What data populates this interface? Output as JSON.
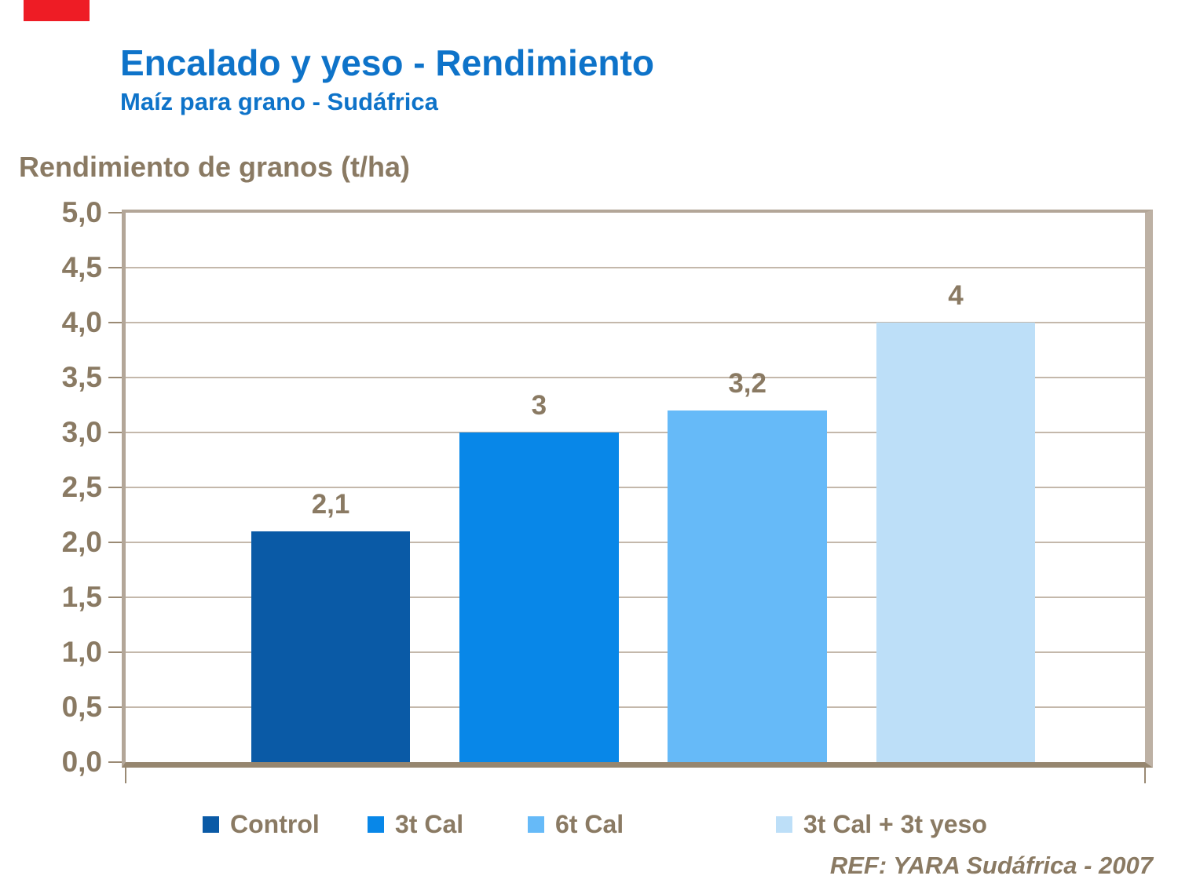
{
  "accent": {
    "bar_color": "#EE1C25"
  },
  "chart_data": {
    "type": "bar",
    "title": "Encalado y yeso - Rendimiento",
    "subtitle": "Maíz para grano - Sudáfrica",
    "ylabel": "Rendimiento de granos (t/ha)",
    "categories": [
      "Control",
      "3t Cal",
      "6t Cal",
      "3t Cal + 3t yeso"
    ],
    "values": [
      2.1,
      3,
      3.2,
      4
    ],
    "value_labels": [
      "2,1",
      "3",
      "3,2",
      "4"
    ],
    "bar_colors": [
      "#0A5AA6",
      "#0887E8",
      "#66BAF8",
      "#BDDFF8"
    ],
    "ylim": [
      0,
      5
    ],
    "ytick_step": 0.5,
    "ytick_labels": [
      "5,0",
      "4,5",
      "4,0",
      "3,5",
      "3,0",
      "2,5",
      "2,0",
      "1,5",
      "1,0",
      "0,5",
      "0,0"
    ],
    "decimal_separator": ",",
    "grid": true,
    "legend_position": "bottom"
  },
  "footer": {
    "ref": "REF: YARA Sudáfrica - 2007"
  },
  "colors": {
    "title_blue": "#0E73C9",
    "text_brown": "#8A7A63",
    "grid": "#C4B8AB",
    "frame_dark": "#96866F",
    "frame_light": "#BDB1A4"
  }
}
